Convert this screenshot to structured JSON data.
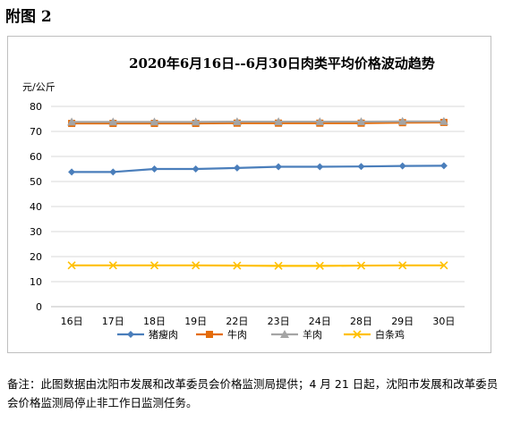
{
  "heading": "附图 2",
  "note": "备注：此图数据由沈阳市发展和改革委员会价格监测局提供；4 月 21 日起，沈阳市发展和改革委员会价格监测局停止非工作日监测任务。",
  "chart_data": {
    "type": "line",
    "title": "2020年6月16日--6月30日肉类平均价格波动趋势",
    "ylabel": "元/公斤",
    "xlabel": "",
    "categories": [
      "16日",
      "17日",
      "18日",
      "19日",
      "22日",
      "23日",
      "24日",
      "28日",
      "29日",
      "30日"
    ],
    "ylim": [
      0,
      80
    ],
    "yticks": [
      "0",
      "10",
      "20",
      "30",
      "40",
      "50",
      "60",
      "70",
      "80"
    ],
    "grid": true,
    "legend_position": "bottom",
    "series": [
      {
        "name": "猪瘦肉",
        "color": "#4a7ebb",
        "marker": "diamond",
        "values": [
          53.8,
          53.8,
          55.0,
          55.0,
          55.4,
          55.9,
          55.9,
          56.0,
          56.2,
          56.3
        ]
      },
      {
        "name": "牛肉",
        "color": "#e46c0a",
        "marker": "square",
        "values": [
          73.2,
          73.2,
          73.2,
          73.2,
          73.3,
          73.3,
          73.3,
          73.3,
          73.5,
          73.6
        ]
      },
      {
        "name": "羊肉",
        "color": "#a5a5a5",
        "marker": "triangle",
        "values": [
          73.8,
          73.8,
          73.8,
          73.8,
          73.9,
          73.9,
          73.9,
          73.9,
          74.0,
          74.0
        ]
      },
      {
        "name": "白条鸡",
        "color": "#ffc000",
        "marker": "x",
        "values": [
          16.5,
          16.5,
          16.5,
          16.5,
          16.4,
          16.3,
          16.3,
          16.4,
          16.5,
          16.5
        ]
      }
    ]
  }
}
